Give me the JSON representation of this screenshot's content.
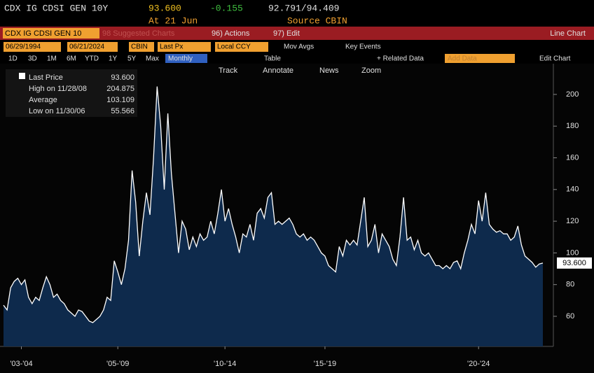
{
  "header": {
    "ticker": "CDX IG CDSI GEN 10Y",
    "last": "93.600",
    "change": "-0.155",
    "bid_ask": "92.791/94.409",
    "time": "At 21 Jun",
    "source": "Source CBIN"
  },
  "menu": {
    "security": "CDX IG CDSI GEN 10",
    "suggested": "98 Suggested Charts",
    "actions": "96) Actions",
    "edit": "97) Edit",
    "view": "Line Chart"
  },
  "toolbar": {
    "start": "06/29/1994",
    "end": "06/21/2024",
    "source": "CBIN",
    "field": "Last Px",
    "currency": "Local CCY",
    "mov_avgs": "Mov Avgs",
    "key_events": "Key Events"
  },
  "periods": [
    "1D",
    "3D",
    "1M",
    "6M",
    "YTD",
    "1Y",
    "5Y",
    "Max"
  ],
  "frequency": "Monthly",
  "table": "Table",
  "related": "+ Related Data",
  "add_data": "Add Data",
  "edit_chart": "Edit Chart",
  "tools": [
    "Track",
    "Annotate",
    "News",
    "Zoom"
  ],
  "legend": {
    "rows": [
      [
        "Last Price",
        "93.600"
      ],
      [
        "High on 11/28/08",
        "204.875"
      ],
      [
        "Average",
        "103.109"
      ],
      [
        "Low on 11/30/06",
        "55.566"
      ]
    ]
  },
  "chart_data": {
    "type": "line",
    "last_label": "93.600",
    "series": [
      {
        "name": "Last Price",
        "color": "#ffffff",
        "fill": "#0e2a4c",
        "values": [
          67,
          64,
          78,
          82,
          84,
          80,
          83,
          72,
          68,
          72,
          70,
          78,
          85,
          80,
          72,
          74,
          70,
          68,
          64,
          62,
          60,
          64,
          63,
          60,
          57,
          56,
          58,
          60,
          64,
          72,
          70,
          95,
          88,
          80,
          90,
          108,
          152,
          132,
          98,
          120,
          138,
          124,
          160,
          205,
          180,
          140,
          188,
          150,
          125,
          100,
          120,
          115,
          102,
          110,
          104,
          112,
          108,
          110,
          120,
          112,
          125,
          140,
          120,
          128,
          118,
          110,
          100,
          112,
          110,
          118,
          108,
          125,
          128,
          122,
          135,
          138,
          118,
          120,
          118,
          120,
          122,
          118,
          112,
          110,
          112,
          108,
          110,
          108,
          104,
          100,
          98,
          92,
          90,
          88,
          104,
          98,
          108,
          105,
          108,
          105,
          120,
          135,
          104,
          108,
          118,
          100,
          112,
          108,
          104,
          96,
          92,
          110,
          135,
          108,
          110,
          102,
          108,
          100,
          98,
          100,
          96,
          92,
          92,
          90,
          92,
          90,
          94,
          95,
          90,
          100,
          108,
          118,
          112,
          133,
          120,
          138,
          118,
          115,
          113,
          114,
          112,
          112,
          108,
          110,
          117,
          105,
          98,
          96,
          94,
          91,
          93,
          93.6
        ]
      }
    ],
    "xlim": [
      0,
      151
    ],
    "xticks": [
      {
        "value": 5,
        "label": "'03-'04"
      },
      {
        "value": 32,
        "label": "'05-'09"
      },
      {
        "value": 62,
        "label": "'10-'14"
      },
      {
        "value": 90,
        "label": "'15-'19"
      },
      {
        "value": 133,
        "label": "'20-'24"
      }
    ],
    "ylim": [
      41,
      211
    ],
    "yticks": [
      60,
      80,
      100,
      120,
      140,
      160,
      180,
      200
    ]
  }
}
